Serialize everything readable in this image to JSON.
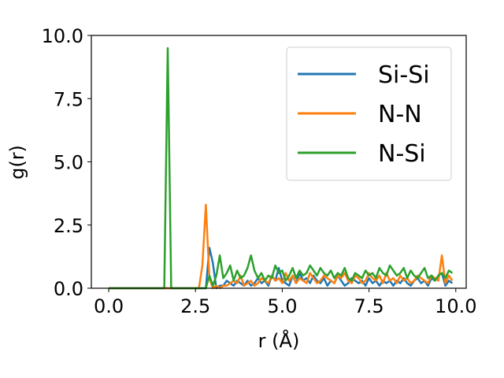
{
  "chart_data": {
    "type": "line",
    "xlabel": "r (Å)",
    "ylabel": "g(r)",
    "xlim": [
      -0.5,
      10.3
    ],
    "ylim": [
      0,
      10
    ],
    "xticks": [
      "0.0",
      "2.5",
      "5.0",
      "7.5",
      "10.0"
    ],
    "yticks": [
      "0.0",
      "2.5",
      "5.0",
      "7.5",
      "10.0"
    ],
    "grid": false,
    "legend_position": "top-right",
    "x": [
      0.0,
      0.1,
      0.2,
      0.3,
      0.4,
      0.5,
      0.6,
      0.7,
      0.8,
      0.9,
      1.0,
      1.1,
      1.2,
      1.3,
      1.4,
      1.5,
      1.6,
      1.7,
      1.8,
      1.9,
      2.0,
      2.1,
      2.2,
      2.3,
      2.4,
      2.5,
      2.6,
      2.7,
      2.8,
      2.9,
      3.0,
      3.1,
      3.2,
      3.3,
      3.4,
      3.5,
      3.6,
      3.7,
      3.8,
      3.9,
      4.0,
      4.1,
      4.2,
      4.3,
      4.4,
      4.5,
      4.6,
      4.7,
      4.8,
      4.9,
      5.0,
      5.1,
      5.2,
      5.3,
      5.4,
      5.5,
      5.6,
      5.7,
      5.8,
      5.9,
      6.0,
      6.1,
      6.2,
      6.3,
      6.4,
      6.5,
      6.6,
      6.7,
      6.8,
      6.9,
      7.0,
      7.1,
      7.2,
      7.3,
      7.4,
      7.5,
      7.6,
      7.7,
      7.8,
      7.9,
      8.0,
      8.1,
      8.2,
      8.3,
      8.4,
      8.5,
      8.6,
      8.7,
      8.8,
      8.9,
      9.0,
      9.1,
      9.2,
      9.3,
      9.4,
      9.5,
      9.6,
      9.7,
      9.8,
      9.9
    ],
    "series": [
      {
        "name": "Si-Si",
        "color": "#1f77b4",
        "values": [
          0,
          0,
          0,
          0,
          0,
          0,
          0,
          0,
          0,
          0,
          0,
          0,
          0,
          0,
          0,
          0,
          0,
          0,
          0,
          0,
          0,
          0,
          0,
          0,
          0,
          0,
          0,
          0,
          0,
          1.6,
          1.0,
          0,
          0.1,
          0.1,
          0.3,
          0.2,
          0.1,
          0.3,
          0.2,
          0.1,
          0.3,
          0.1,
          0.2,
          0.4,
          0.2,
          0.3,
          0.1,
          0.5,
          0.3,
          0.8,
          0.3,
          0.2,
          0.1,
          0.5,
          0.2,
          0.6,
          0.3,
          0.4,
          0.2,
          0.5,
          0.3,
          0.2,
          0.4,
          0.1,
          0.3,
          0.2,
          0.5,
          0.3,
          0.1,
          0.2,
          0.4,
          0.3,
          0.2,
          0.3,
          0.1,
          0.4,
          0.2,
          0.3,
          0.1,
          0.3,
          0.2,
          0.3,
          0.1,
          0.3,
          0.2,
          0.4,
          0.2,
          0.1,
          0.3,
          0.4,
          0.2,
          0.3,
          0.1,
          0.4,
          0.3,
          0.5,
          0.6,
          0.1,
          0.3,
          0.2
        ]
      },
      {
        "name": "N-N",
        "color": "#ff7f0e",
        "values": [
          0,
          0,
          0,
          0,
          0,
          0,
          0,
          0,
          0,
          0,
          0,
          0,
          0,
          0,
          0,
          0,
          0,
          0,
          0,
          0,
          0,
          0,
          0,
          0,
          0,
          0,
          0,
          0.9,
          3.3,
          0.4,
          0,
          0.1,
          0,
          0.1,
          0.1,
          0.2,
          0.3,
          0.2,
          0.5,
          0.1,
          0.2,
          0.3,
          0.1,
          0.2,
          0.4,
          0.3,
          0.2,
          0.5,
          0.3,
          0.4,
          0.2,
          0.6,
          0.3,
          0.5,
          0.2,
          0.4,
          0.3,
          0.2,
          0.6,
          0.4,
          0.2,
          0.3,
          0.5,
          0.4,
          0.3,
          0.2,
          0.5,
          0.4,
          0.6,
          0.3,
          0.2,
          0.5,
          0.4,
          0.2,
          0.3,
          0.6,
          0.4,
          0.3,
          0.5,
          0.2,
          0.6,
          0.3,
          0.4,
          0.2,
          0.5,
          0.3,
          0.4,
          0.2,
          0.3,
          0.5,
          0.4,
          0.3,
          0.2,
          0.5,
          0.4,
          0.3,
          1.3,
          0.2,
          0.5,
          0.3
        ]
      },
      {
        "name": "N-Si",
        "color": "#2ca02c",
        "values": [
          0,
          0,
          0,
          0,
          0,
          0,
          0,
          0,
          0,
          0,
          0,
          0,
          0,
          0,
          0,
          0,
          0,
          9.5,
          0,
          0,
          0,
          0,
          0,
          0,
          0,
          0,
          0,
          0,
          0,
          0.5,
          0.1,
          0.5,
          1.3,
          0.4,
          0.6,
          0.9,
          0.3,
          0.7,
          0.4,
          0.5,
          0.8,
          1.3,
          0.7,
          0.4,
          0.6,
          0.3,
          0.5,
          0.4,
          0.9,
          0.6,
          0.7,
          0.3,
          0.5,
          0.8,
          0.4,
          0.7,
          0.5,
          0.6,
          0.9,
          0.7,
          0.5,
          0.8,
          0.6,
          0.5,
          0.7,
          0.4,
          0.6,
          0.5,
          0.8,
          0.4,
          0.3,
          0.6,
          0.5,
          0.4,
          0.7,
          0.5,
          0.6,
          0.4,
          0.8,
          0.6,
          0.5,
          0.9,
          0.7,
          0.5,
          0.6,
          0.8,
          0.4,
          0.7,
          0.5,
          0.4,
          0.6,
          0.8,
          0.4,
          0.5,
          0.3,
          0.5,
          0.6,
          0.4,
          0.7,
          0.6
        ]
      }
    ]
  }
}
